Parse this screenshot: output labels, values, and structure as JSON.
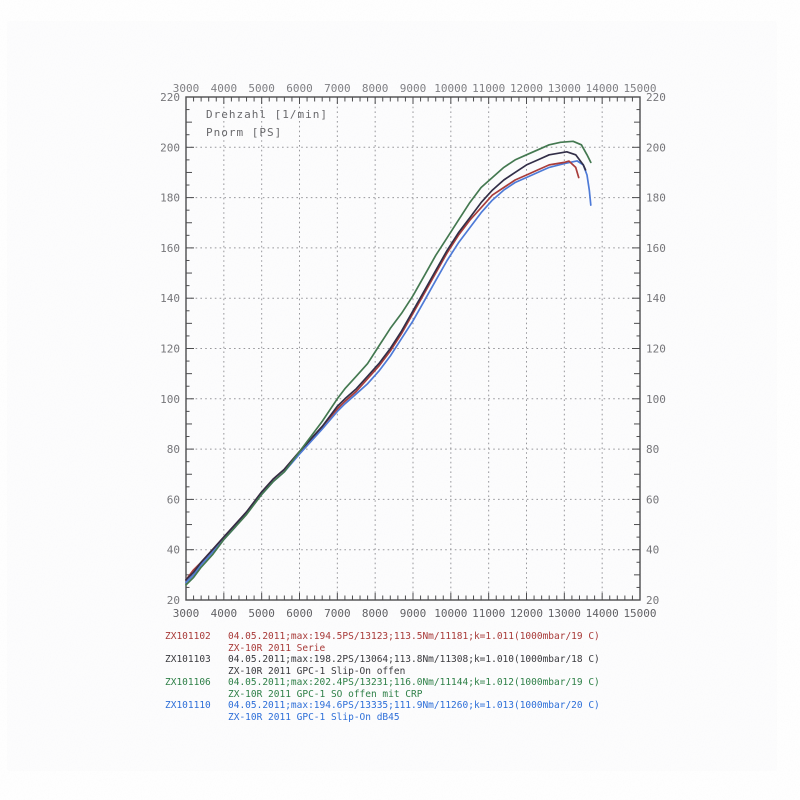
{
  "colors": {
    "frame": "#4a4a4c",
    "grid": "#97979b",
    "axis_text_top": "#717175",
    "axis_text_side": "#66666a",
    "axis_text_bottom": "#4e4e52",
    "header_text": "#5d5d60"
  },
  "chart_data": {
    "type": "line",
    "title": "",
    "xlabel": "Drehzahl [1/min]",
    "ylabel": "Pnorm [PS]",
    "header_lines": [
      "Drehzahl [1/min]",
      "Pnorm [PS]"
    ],
    "xlim": [
      3000,
      15000
    ],
    "ylim": [
      20,
      220
    ],
    "x_ticks": [
      3000,
      4000,
      5000,
      6000,
      7000,
      8000,
      9000,
      10000,
      11000,
      12000,
      13000,
      14000,
      15000
    ],
    "y_ticks": [
      20,
      40,
      60,
      80,
      100,
      120,
      140,
      160,
      180,
      200,
      220
    ],
    "x_minor_step": 200,
    "y_minor_step": 5,
    "grid": "dotted",
    "legend_position": "below",
    "series": [
      {
        "name": "ZX101110 ZX-10R 2011 GPC-1 Slip-On dB45",
        "color": "#4b79d8",
        "max_label": "194.6PS/13335",
        "points": [
          [
            3000,
            27
          ],
          [
            3200,
            30
          ],
          [
            3400,
            34
          ],
          [
            3700,
            39
          ],
          [
            4000,
            44
          ],
          [
            4300,
            49
          ],
          [
            4600,
            55
          ],
          [
            5000,
            62
          ],
          [
            5300,
            67
          ],
          [
            5600,
            71
          ],
          [
            6000,
            78
          ],
          [
            6300,
            83
          ],
          [
            6600,
            88
          ],
          [
            7000,
            95
          ],
          [
            7200,
            98
          ],
          [
            7500,
            102
          ],
          [
            7800,
            106
          ],
          [
            8100,
            111
          ],
          [
            8400,
            117
          ],
          [
            8700,
            124
          ],
          [
            9000,
            131
          ],
          [
            9300,
            139
          ],
          [
            9600,
            147
          ],
          [
            9900,
            155
          ],
          [
            10200,
            162
          ],
          [
            10500,
            168
          ],
          [
            10800,
            174
          ],
          [
            11100,
            179
          ],
          [
            11400,
            183
          ],
          [
            11700,
            186
          ],
          [
            12000,
            188
          ],
          [
            12300,
            190
          ],
          [
            12600,
            192
          ],
          [
            13000,
            193.5
          ],
          [
            13335,
            194.6
          ],
          [
            13500,
            193
          ],
          [
            13600,
            189
          ],
          [
            13660,
            183
          ],
          [
            13700,
            177
          ]
        ]
      },
      {
        "name": "ZX101102 ZX-10R 2011 Serie",
        "color": "#a83a38",
        "max_label": "194.5PS/13123",
        "points": [
          [
            3000,
            28
          ],
          [
            3200,
            32
          ],
          [
            3400,
            35
          ],
          [
            3700,
            40
          ],
          [
            4000,
            45
          ],
          [
            4300,
            50
          ],
          [
            4600,
            55
          ],
          [
            5000,
            63
          ],
          [
            5300,
            68
          ],
          [
            5600,
            72
          ],
          [
            6000,
            79
          ],
          [
            6300,
            84
          ],
          [
            6600,
            89
          ],
          [
            7000,
            96
          ],
          [
            7200,
            99
          ],
          [
            7500,
            103
          ],
          [
            7800,
            108
          ],
          [
            8100,
            113
          ],
          [
            8400,
            119
          ],
          [
            8700,
            126
          ],
          [
            9000,
            134
          ],
          [
            9300,
            142
          ],
          [
            9600,
            150
          ],
          [
            9900,
            158
          ],
          [
            10200,
            165
          ],
          [
            10500,
            171
          ],
          [
            10800,
            176
          ],
          [
            11100,
            181
          ],
          [
            11400,
            184
          ],
          [
            11700,
            187
          ],
          [
            12000,
            189
          ],
          [
            12300,
            191
          ],
          [
            12600,
            193
          ],
          [
            13000,
            194
          ],
          [
            13123,
            194.5
          ],
          [
            13300,
            192
          ],
          [
            13380,
            188
          ]
        ]
      },
      {
        "name": "ZX101103 ZX-10R 2011 GPC-1 Slip-On offen",
        "color": "#2f2b45",
        "max_label": "198.2PS/13064",
        "points": [
          [
            3000,
            28
          ],
          [
            3200,
            31
          ],
          [
            3400,
            35
          ],
          [
            3700,
            40
          ],
          [
            4000,
            45
          ],
          [
            4300,
            50
          ],
          [
            4600,
            55
          ],
          [
            5000,
            63
          ],
          [
            5300,
            68
          ],
          [
            5600,
            72
          ],
          [
            6000,
            79
          ],
          [
            6300,
            84
          ],
          [
            6600,
            89
          ],
          [
            7000,
            97
          ],
          [
            7200,
            100
          ],
          [
            7500,
            104
          ],
          [
            7800,
            109
          ],
          [
            8100,
            114
          ],
          [
            8400,
            120
          ],
          [
            8700,
            127
          ],
          [
            9000,
            135
          ],
          [
            9300,
            143
          ],
          [
            9600,
            151
          ],
          [
            9900,
            159
          ],
          [
            10200,
            166
          ],
          [
            10500,
            172
          ],
          [
            10800,
            178
          ],
          [
            11100,
            183
          ],
          [
            11400,
            187
          ],
          [
            11700,
            190
          ],
          [
            12000,
            193
          ],
          [
            12300,
            195
          ],
          [
            12600,
            197
          ],
          [
            13064,
            198.2
          ],
          [
            13300,
            197
          ],
          [
            13500,
            193
          ],
          [
            13560,
            191
          ]
        ]
      },
      {
        "name": "ZX101106 ZX-10R 2011 GPC-1 SO offen mit CRP",
        "color": "#41774e",
        "max_label": "202.4PS/13231",
        "points": [
          [
            3000,
            26
          ],
          [
            3200,
            29
          ],
          [
            3400,
            33
          ],
          [
            3700,
            38
          ],
          [
            4000,
            44
          ],
          [
            4300,
            49
          ],
          [
            4600,
            54
          ],
          [
            5000,
            62
          ],
          [
            5300,
            67
          ],
          [
            5600,
            71
          ],
          [
            6000,
            79
          ],
          [
            6300,
            85
          ],
          [
            6600,
            91
          ],
          [
            7000,
            100
          ],
          [
            7200,
            104
          ],
          [
            7500,
            109
          ],
          [
            7800,
            114
          ],
          [
            8100,
            121
          ],
          [
            8400,
            128
          ],
          [
            8700,
            134
          ],
          [
            9000,
            141
          ],
          [
            9300,
            149
          ],
          [
            9600,
            157
          ],
          [
            9900,
            164
          ],
          [
            10200,
            171
          ],
          [
            10500,
            178
          ],
          [
            10800,
            184
          ],
          [
            11100,
            188
          ],
          [
            11400,
            192
          ],
          [
            11700,
            195
          ],
          [
            12000,
            197
          ],
          [
            12300,
            199
          ],
          [
            12600,
            201
          ],
          [
            12900,
            202
          ],
          [
            13231,
            202.4
          ],
          [
            13450,
            201
          ],
          [
            13600,
            197
          ],
          [
            13700,
            194
          ]
        ]
      }
    ]
  },
  "legend": {
    "entries": [
      {
        "id": "ZX101102",
        "color": "#a83a38",
        "line1": "04.05.2011;max:194.5PS/13123;113.5Nm/11181;k=1.011(1000mbar/19 C)",
        "line2": "ZX-10R 2011 Serie"
      },
      {
        "id": "ZX101103",
        "color": "#3a3a3e",
        "line1": "04.05.2011;max:198.2PS/13064;113.8Nm/11308;k=1.010(1000mbar/18 C)",
        "line2": "ZX-10R 2011 GPC-1 Slip-On offen"
      },
      {
        "id": "ZX101106",
        "color": "#2f8048",
        "line1": "04.05.2011;max:202.4PS/13231;116.0Nm/11144;k=1.012(1000mbar/19 C)",
        "line2": "ZX-10R 2011 GPC-1 SO offen mit CRP"
      },
      {
        "id": "ZX101110",
        "color": "#2e6fd8",
        "line1": "04.05.2011;max:194.6PS/13335;111.9Nm/11260;k=1.013(1000mbar/20 C)",
        "line2": "ZX-10R 2011 GPC-1 Slip-On dB45"
      }
    ]
  }
}
